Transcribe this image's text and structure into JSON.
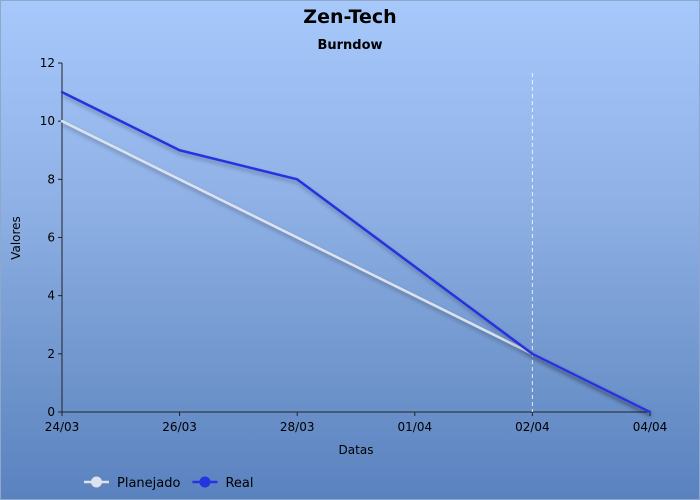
{
  "chart_data": {
    "type": "line",
    "title": "Zen-Tech",
    "subtitle": "Burndow",
    "xlabel": "Datas",
    "ylabel": "Valores",
    "x_tick_labels": [
      "24/03",
      "26/03",
      "28/03",
      "01/04",
      "02/04",
      "04/04"
    ],
    "y_ticks": [
      0,
      2,
      4,
      6,
      8,
      10,
      12
    ],
    "ylim": [
      0,
      12
    ],
    "grid": false,
    "legend_placement": "bottom-left",
    "marker_line_label": "02/04",
    "series": [
      {
        "name": "Planejado",
        "color": "#dde3ee",
        "values": [
          10,
          8,
          6,
          4,
          2,
          0
        ]
      },
      {
        "name": "Real",
        "color": "#2633e0",
        "values": [
          11,
          9,
          8,
          5,
          2,
          0
        ]
      }
    ]
  }
}
